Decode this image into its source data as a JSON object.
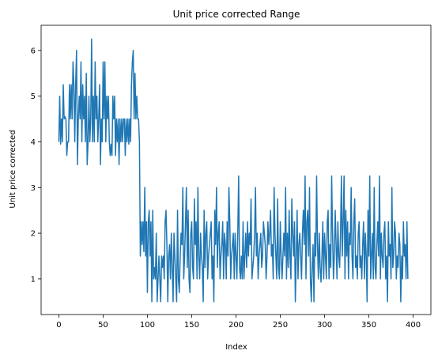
{
  "chart_data": {
    "type": "line",
    "title": "Unit price corrected Range",
    "xlabel": "Index",
    "ylabel": "Unit price corrected",
    "xlim": [
      -20,
      420
    ],
    "ylim": [
      0.22,
      6.55
    ],
    "grid": false,
    "line_color": "#1f77b4",
    "xticks": [
      0,
      50,
      100,
      150,
      200,
      250,
      300,
      350,
      400
    ],
    "yticks": [
      1,
      2,
      3,
      4,
      5,
      6
    ],
    "series": [
      {
        "values": [
          4.0,
          5.0,
          3.95,
          4.5,
          4.0,
          5.25,
          4.5,
          4.55,
          4.5,
          3.7,
          4.0,
          4.0,
          5.25,
          4.5,
          5.25,
          4.5,
          5.75,
          5.25,
          4.0,
          5.25,
          6.0,
          3.5,
          4.5,
          5.0,
          4.5,
          5.75,
          4.0,
          5.25,
          4.5,
          5.0,
          4.0,
          5.5,
          3.5,
          4.0,
          5.0,
          4.0,
          4.5,
          6.25,
          4.0,
          5.0,
          4.0,
          5.75,
          4.5,
          5.0,
          4.0,
          4.5,
          5.25,
          3.5,
          4.5,
          4.0,
          5.75,
          4.5,
          5.75,
          4.0,
          5.0,
          4.5,
          5.0,
          4.0,
          3.7,
          3.95,
          3.7,
          5.0,
          4.5,
          5.0,
          3.7,
          4.5,
          4.0,
          4.5,
          3.5,
          4.5,
          4.0,
          4.5,
          4.0,
          4.5,
          4.5,
          3.7,
          4.5,
          4.0,
          4.5,
          3.95,
          4.5,
          4.0,
          5.25,
          5.75,
          6.0,
          4.5,
          5.5,
          4.5,
          5.0,
          4.5,
          4.5,
          4.0,
          1.5,
          2.25,
          1.75,
          2.25,
          1.6,
          3.0,
          1.5,
          2.25,
          0.7,
          2.25,
          2.5,
          1.5,
          2.25,
          0.5,
          2.5,
          1.0,
          1.25,
          1.0,
          2.0,
          0.5,
          1.0,
          1.5,
          1.0,
          0.5,
          1.5,
          1.25,
          1.5,
          1.0,
          2.25,
          2.5,
          1.75,
          0.5,
          1.5,
          1.75,
          1.0,
          2.0,
          1.25,
          0.5,
          2.0,
          1.5,
          1.0,
          0.5,
          2.5,
          1.0,
          0.7,
          1.5,
          2.0,
          1.75,
          3.0,
          1.0,
          1.5,
          2.25,
          3.0,
          1.25,
          2.5,
          1.0,
          0.7,
          2.0,
          2.25,
          1.25,
          1.0,
          2.75,
          1.75,
          2.25,
          1.0,
          3.0,
          1.5,
          1.0,
          2.0,
          1.5,
          1.25,
          0.5,
          2.5,
          1.25,
          2.0,
          2.25,
          1.0,
          1.5,
          1.75,
          2.0,
          2.25,
          1.0,
          1.5,
          0.5,
          2.5,
          1.75,
          3.0,
          1.25,
          2.0,
          2.25,
          1.0,
          1.5,
          1.75,
          2.25,
          1.0,
          2.0,
          1.75,
          1.0,
          2.25,
          1.5,
          3.0,
          2.25,
          1.0,
          1.5,
          1.75,
          2.0,
          1.0,
          2.0,
          1.5,
          1.0,
          2.0,
          3.25,
          1.25,
          1.0,
          1.5,
          1.0,
          2.25,
          1.0,
          1.5,
          2.0,
          1.25,
          2.25,
          1.5,
          2.0,
          1.75,
          2.75,
          1.0,
          1.25,
          1.5,
          2.0,
          3.0,
          1.5,
          2.0,
          1.0,
          1.5,
          1.75,
          2.0,
          1.25,
          1.5,
          2.25,
          2.0,
          1.75,
          1.0,
          1.5,
          2.25,
          1.75,
          2.0,
          2.5,
          1.5,
          1.75,
          1.0,
          3.0,
          2.0,
          1.5,
          1.0,
          2.75,
          1.25,
          1.0,
          2.25,
          1.5,
          1.0,
          1.5,
          2.0,
          1.5,
          3.0,
          1.0,
          2.0,
          1.25,
          2.5,
          1.5,
          1.0,
          2.75,
          2.0,
          1.5,
          2.25,
          0.5,
          1.5,
          2.5,
          1.0,
          1.75,
          2.0,
          1.5,
          1.0,
          2.0,
          2.5,
          1.75,
          3.25,
          1.0,
          2.25,
          2.5,
          1.5,
          3.0,
          1.0,
          0.5,
          1.25,
          1.75,
          0.5,
          2.0,
          1.5,
          3.25,
          1.75,
          1.0,
          2.0,
          1.25,
          0.93,
          1.5,
          2.25,
          1.0,
          2.0,
          1.5,
          1.0,
          2.25,
          2.5,
          1.0,
          1.75,
          1.25,
          3.25,
          2.0,
          1.0,
          1.5,
          2.5,
          1.75,
          1.0,
          2.25,
          1.5,
          1.25,
          2.0,
          3.25,
          1.5,
          2.25,
          3.25,
          1.0,
          2.5,
          1.5,
          2.25,
          1.0,
          2.0,
          1.75,
          3.0,
          1.5,
          1.0,
          2.25,
          2.75,
          1.25,
          1.5,
          1.0,
          2.0,
          2.25,
          1.25,
          1.5,
          1.0,
          1.75,
          2.25,
          1.0,
          2.0,
          1.5,
          0.5,
          2.5,
          1.5,
          3.25,
          1.0,
          1.5,
          2.0,
          1.0,
          3.0,
          1.25,
          1.0,
          1.75,
          2.25,
          1.5,
          3.25,
          1.0,
          2.0,
          1.5,
          1.25,
          2.0,
          2.25,
          1.0,
          1.5,
          0.5,
          2.25,
          1.5,
          1.75,
          1.0,
          3.0,
          1.25,
          1.5,
          2.25,
          2.0,
          1.0,
          1.5,
          1.25,
          2.0,
          1.75,
          0.5,
          1.5,
          1.0,
          2.25,
          1.5,
          1.75,
          1.0,
          2.25,
          1.0
        ]
      }
    ]
  }
}
